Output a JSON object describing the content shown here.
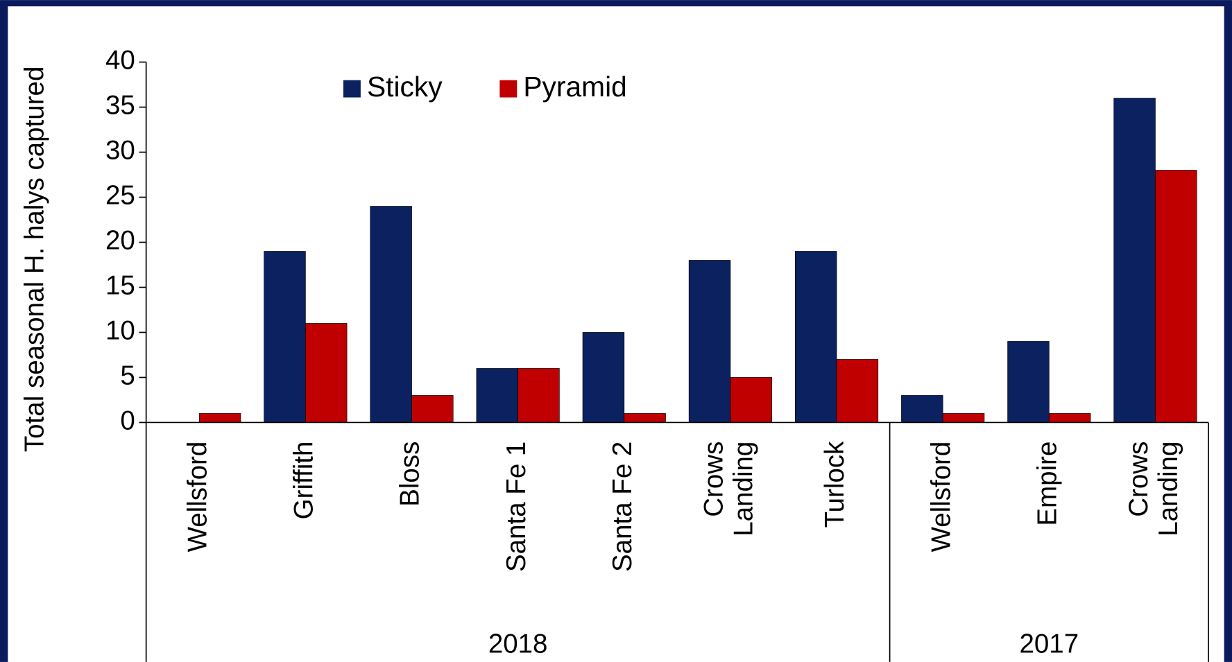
{
  "chart_data": {
    "type": "bar",
    "y_label": "Total seasonal H. halys captured",
    "groups": [
      {
        "name": "2018",
        "categories": [
          "Wellsford",
          "Griffith",
          "Bloss",
          "Santa Fe 1",
          "Santa Fe 2",
          "Crows Landing",
          "Turlock"
        ]
      },
      {
        "name": "2017",
        "categories": [
          "Wellsford",
          "Empire",
          "Crows Landing"
        ]
      }
    ],
    "series": [
      {
        "name": "Sticky",
        "color": "#0b2160",
        "values": [
          0,
          19,
          24,
          6,
          10,
          18,
          19,
          3,
          9,
          36
        ]
      },
      {
        "name": "Pyramid",
        "color": "#c00000",
        "values": [
          1,
          11,
          3,
          6,
          1,
          5,
          7,
          1,
          1,
          28
        ]
      }
    ],
    "ylim": [
      0,
      40
    ],
    "yticks": [
      0,
      5,
      10,
      15,
      20,
      25,
      30,
      35,
      40
    ],
    "legend": "top"
  }
}
